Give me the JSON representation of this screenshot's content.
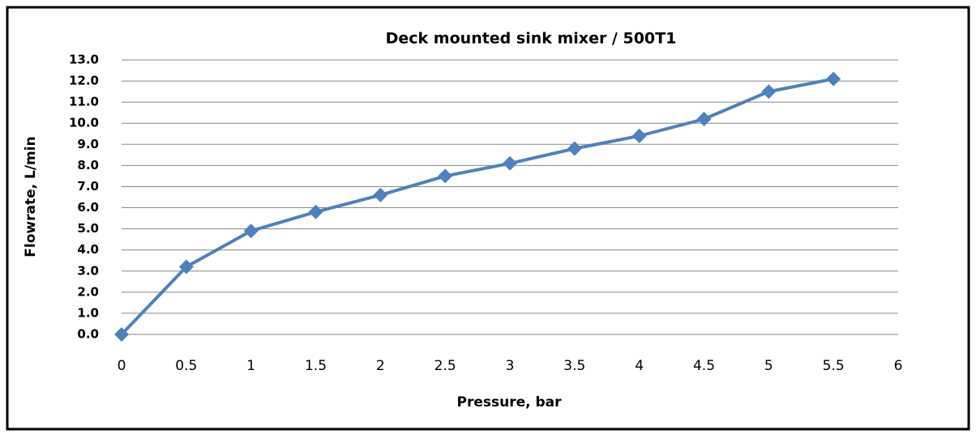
{
  "chart_data": {
    "type": "line",
    "title": "Deck mounted sink mixer / 500T1",
    "x_label": "Pressure, bar",
    "y_label": "Flowrate, L/min",
    "x": [
      0,
      0.5,
      1,
      1.5,
      2,
      2.5,
      3,
      3.5,
      4,
      4.5,
      5,
      5.5
    ],
    "series": [
      {
        "name": "Flowrate",
        "color": "#4f81bd",
        "values": [
          0,
          3.2,
          4.9,
          5.8,
          6.6,
          7.5,
          8.1,
          8.8,
          9.4,
          10.2,
          11.5,
          12.1
        ]
      }
    ],
    "xlim": [
      0,
      6
    ],
    "xticks": [
      0,
      0.5,
      1,
      1.5,
      2,
      2.5,
      3,
      3.5,
      4,
      4.5,
      5,
      5.5,
      6
    ],
    "ylim": [
      0,
      13
    ],
    "yticks": [
      {
        "value": 0,
        "label": "0.0"
      },
      {
        "value": 1,
        "label": "1.0"
      },
      {
        "value": 2,
        "label": "2.0"
      },
      {
        "value": 3,
        "label": "3.0"
      },
      {
        "value": 4,
        "label": "4.0"
      },
      {
        "value": 5,
        "label": "5.0"
      },
      {
        "value": 6,
        "label": "6.0"
      },
      {
        "value": 7,
        "label": "7.0"
      },
      {
        "value": 8,
        "label": "8.0"
      },
      {
        "value": 9,
        "label": "9.0"
      },
      {
        "value": 10,
        "label": "10.0"
      },
      {
        "value": 11,
        "label": "11.0"
      },
      {
        "value": 12,
        "label": "12.0"
      },
      {
        "value": 13,
        "label": "13.0"
      }
    ],
    "grid": true
  }
}
